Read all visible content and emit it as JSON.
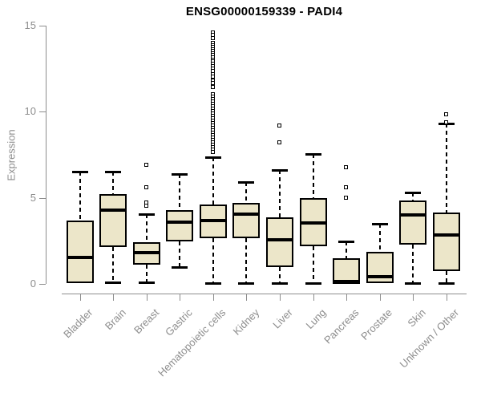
{
  "chart_data": {
    "type": "boxplot",
    "title": "ENSG00000159339 - PADI4",
    "ylabel": "Expression",
    "xlabel": "",
    "ylim": [
      0,
      15
    ],
    "yticks": [
      0,
      5,
      10,
      15
    ],
    "grid": false,
    "legend": false,
    "box_fill_color": "#ece6c9",
    "box_border_color": "#000000",
    "axis_color": "#8d8d8d",
    "categories": [
      "Bladder",
      "Brain",
      "Breast",
      "Gastric",
      "Hematopoietic cells",
      "Kidney",
      "Liver",
      "Lung",
      "Pancreas",
      "Prostate",
      "Skin",
      "Unknown / Other"
    ],
    "series": [
      {
        "category": "Bladder",
        "whisker_low": 0.05,
        "q1": 0.05,
        "median": 1.55,
        "q3": 3.7,
        "whisker_high": 6.5,
        "outliers": []
      },
      {
        "category": "Brain",
        "whisker_low": 0.1,
        "q1": 2.15,
        "median": 4.3,
        "q3": 5.2,
        "whisker_high": 6.5,
        "outliers": []
      },
      {
        "category": "Breast",
        "whisker_low": 0.1,
        "q1": 1.1,
        "median": 1.8,
        "q3": 2.4,
        "whisker_high": 4.05,
        "outliers": [
          4.55,
          4.75,
          5.6,
          6.9
        ]
      },
      {
        "category": "Gastric",
        "whisker_low": 1.0,
        "q1": 2.45,
        "median": 3.6,
        "q3": 4.3,
        "whisker_high": 6.4,
        "outliers": []
      },
      {
        "category": "Hematopoietic cells",
        "whisker_low": 0.05,
        "q1": 2.65,
        "median": 3.7,
        "q3": 4.6,
        "whisker_high": 7.35,
        "outliers": [
          14.6,
          14.45,
          14.3,
          14.0,
          13.88,
          13.76,
          13.64,
          13.52,
          13.4,
          13.28,
          13.16,
          13.04,
          12.92,
          12.8,
          12.65,
          12.5,
          12.35,
          12.2,
          12.05,
          11.8,
          11.65,
          11.45,
          11.0,
          10.86,
          10.72,
          10.58,
          10.44,
          10.3,
          10.16,
          10.02,
          9.88,
          9.74,
          9.6,
          9.46,
          9.32,
          9.18,
          9.04,
          8.9,
          8.76,
          8.62,
          8.48,
          8.34,
          8.2,
          8.06,
          7.92,
          7.78,
          7.64
        ]
      },
      {
        "category": "Kidney",
        "whisker_low": 0.05,
        "q1": 2.65,
        "median": 4.05,
        "q3": 4.7,
        "whisker_high": 5.9,
        "outliers": []
      },
      {
        "category": "Liver",
        "whisker_low": 0.05,
        "q1": 1.0,
        "median": 2.55,
        "q3": 3.85,
        "whisker_high": 6.6,
        "outliers": [
          8.2,
          9.2
        ]
      },
      {
        "category": "Lung",
        "whisker_low": 0.05,
        "q1": 2.2,
        "median": 3.55,
        "q3": 5.0,
        "whisker_high": 7.55,
        "outliers": []
      },
      {
        "category": "Pancreas",
        "whisker_low": 0.02,
        "q1": 0.02,
        "median": 0.12,
        "q3": 1.5,
        "whisker_high": 2.45,
        "outliers": [
          5.0,
          5.6,
          6.8
        ]
      },
      {
        "category": "Prostate",
        "whisker_low": 0.05,
        "q1": 0.05,
        "median": 0.4,
        "q3": 1.85,
        "whisker_high": 3.5,
        "outliers": []
      },
      {
        "category": "Skin",
        "whisker_low": 0.05,
        "q1": 2.3,
        "median": 4.0,
        "q3": 4.85,
        "whisker_high": 5.3,
        "outliers": []
      },
      {
        "category": "Unknown / Other",
        "whisker_low": 0.05,
        "q1": 0.75,
        "median": 2.85,
        "q3": 4.15,
        "whisker_high": 9.3,
        "outliers": [
          9.4,
          9.85
        ]
      }
    ]
  }
}
